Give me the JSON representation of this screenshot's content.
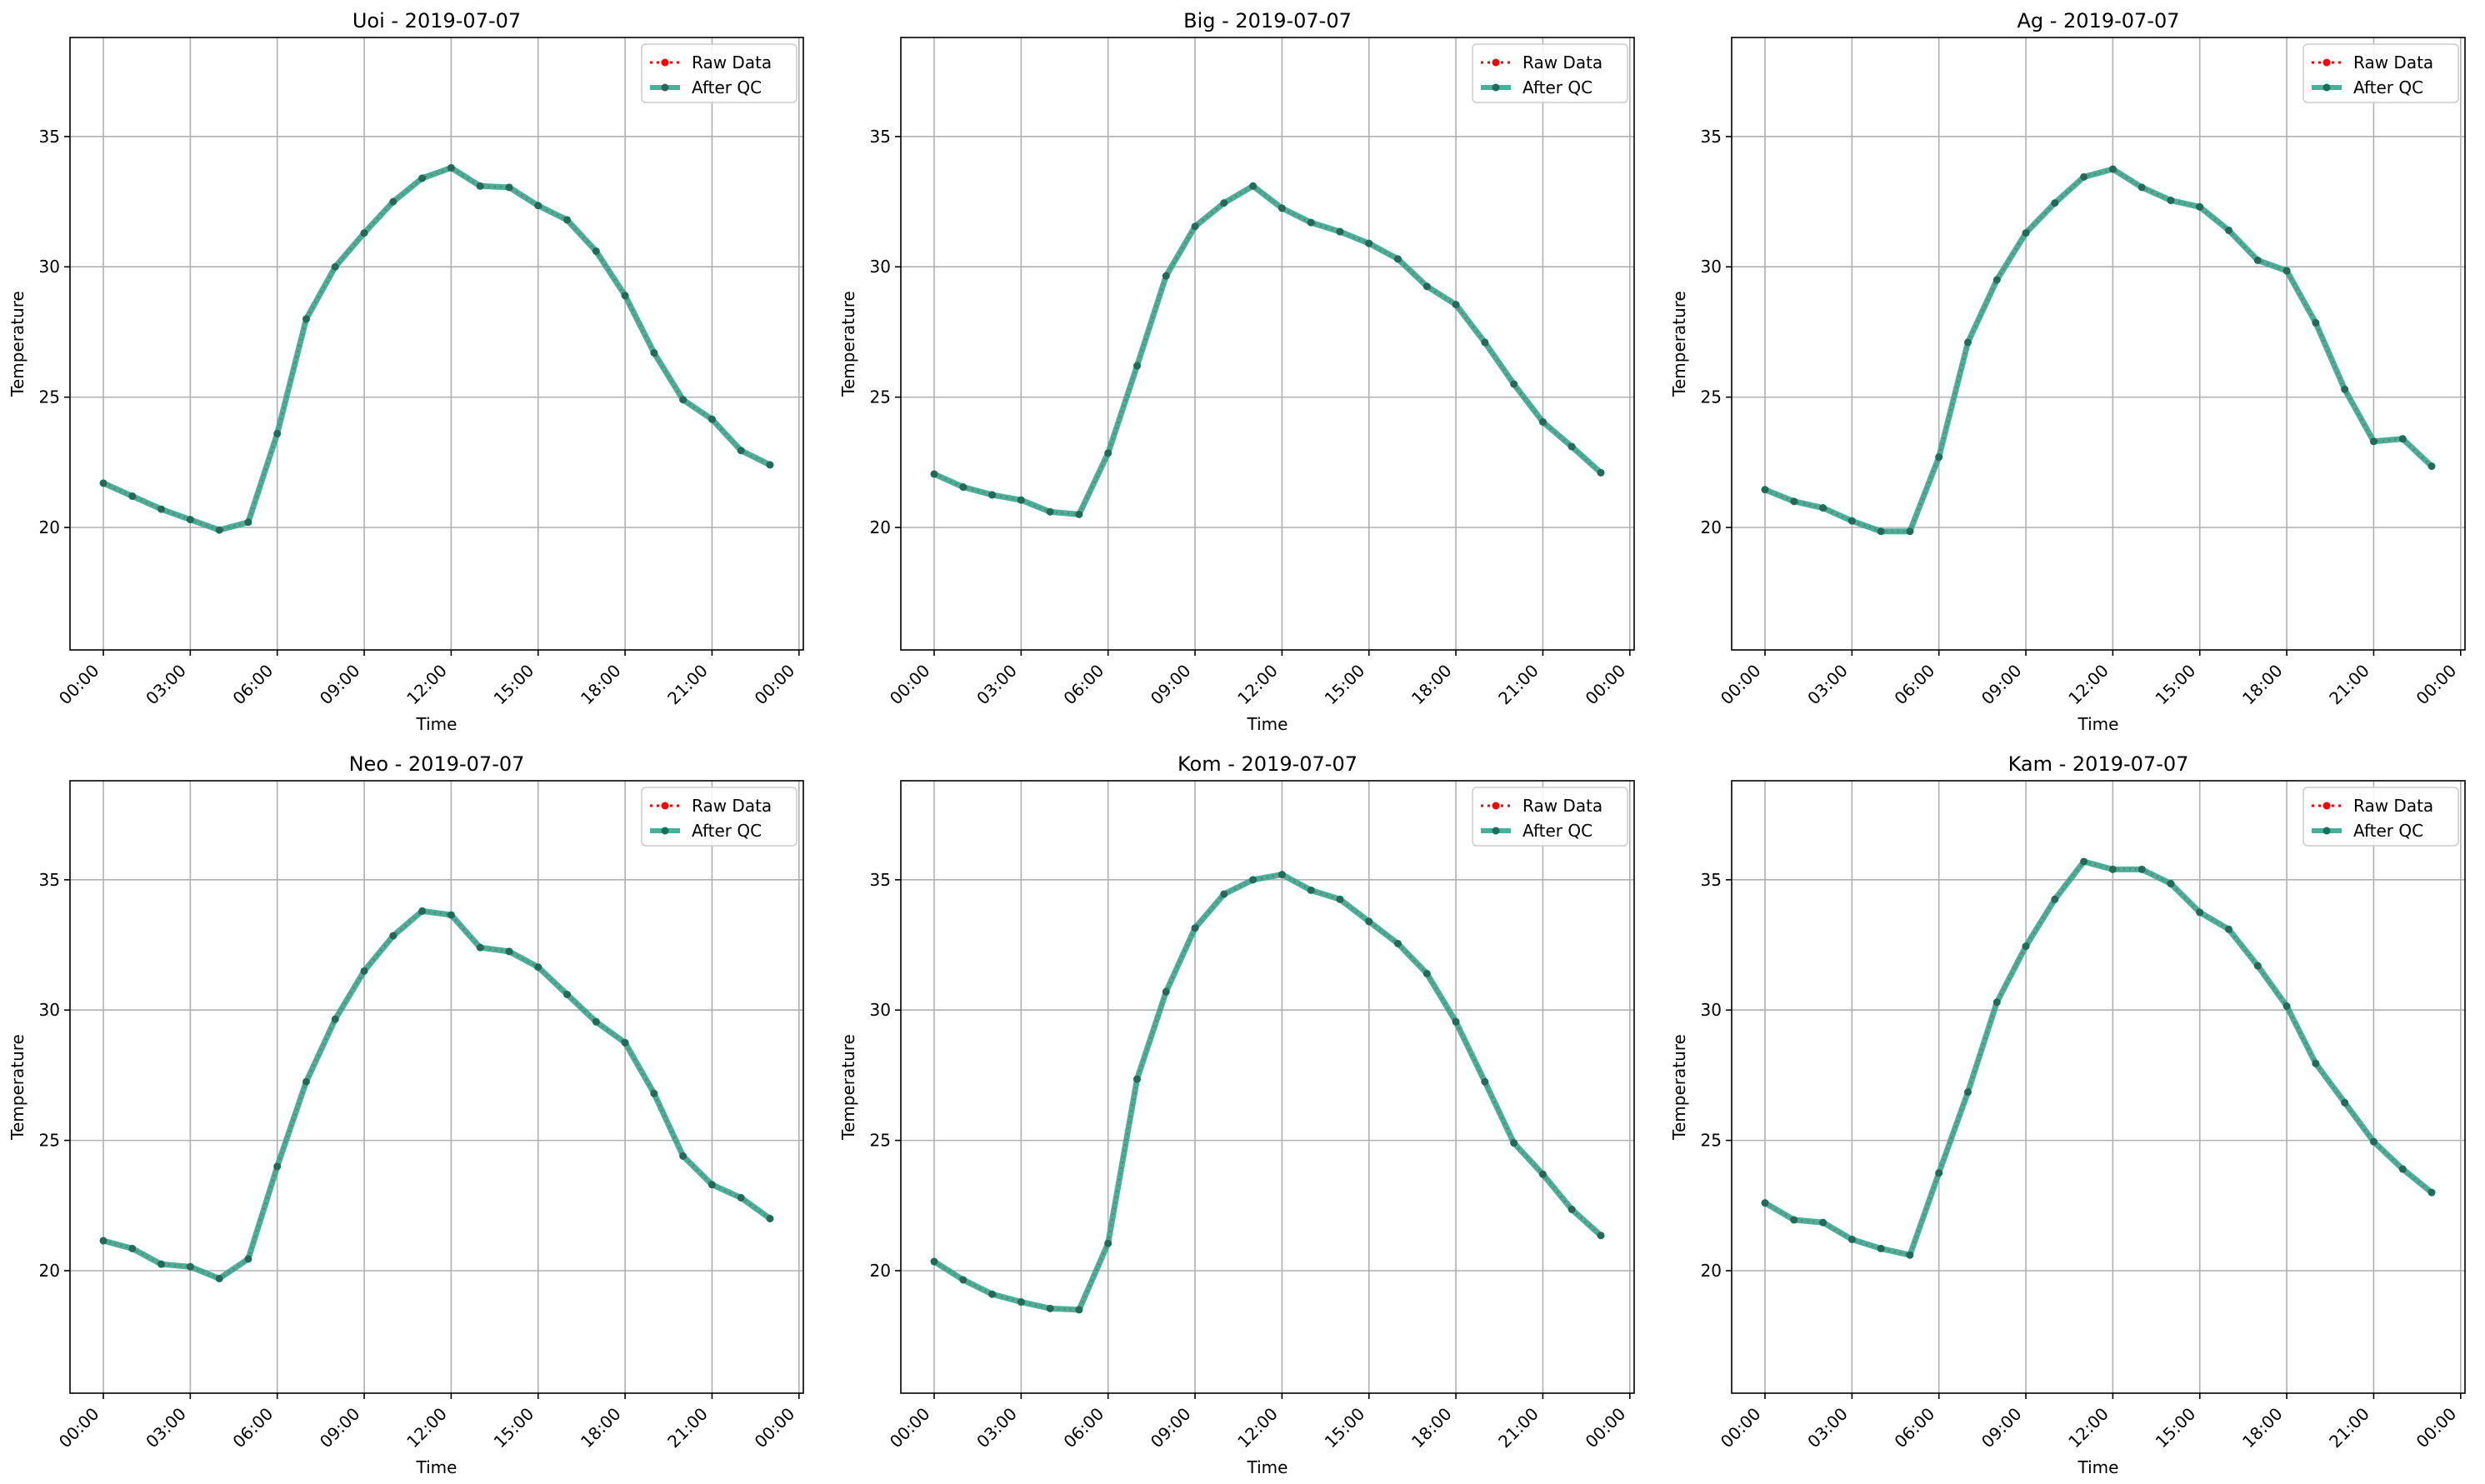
{
  "legend": {
    "raw_label": "Raw Data",
    "qc_label": "After QC",
    "placement": "upper right"
  },
  "colors": {
    "raw": "#ff0000",
    "qc": "#2ca58d",
    "qc_marker": "#1a6e5c",
    "grid": "#b0b0b0",
    "axes": "#000000"
  },
  "chart_data": [
    {
      "type": "line",
      "title": "Uoi - 2019-07-07",
      "xlabel": "Time",
      "ylabel": "Temperature",
      "xlim": [
        -1.15,
        24.15
      ],
      "ylim": [
        15.3,
        38.8
      ],
      "grid": true,
      "legend": "top-right",
      "xticks": [
        "00:00",
        "03:00",
        "06:00",
        "09:00",
        "12:00",
        "15:00",
        "18:00",
        "21:00",
        "00:00"
      ],
      "yticks": [
        20,
        25,
        30,
        35
      ],
      "x": [
        0,
        1,
        2,
        3,
        4,
        5,
        6,
        7,
        8,
        9,
        10,
        11,
        12,
        13,
        14,
        15,
        16,
        17,
        18,
        19,
        20,
        21,
        22,
        23
      ],
      "series": [
        {
          "name": "Raw Data",
          "values": [
            21.7,
            21.2,
            20.7,
            20.3,
            19.9,
            20.2,
            23.6,
            28.0,
            30.0,
            31.3,
            32.5,
            33.4,
            33.8,
            33.1,
            33.05,
            32.35,
            31.8,
            30.6,
            28.9,
            26.7,
            24.9,
            24.15,
            22.95,
            22.4
          ]
        },
        {
          "name": "After QC",
          "values": [
            21.7,
            21.2,
            20.7,
            20.3,
            19.9,
            20.2,
            23.6,
            28.0,
            30.0,
            31.3,
            32.5,
            33.4,
            33.8,
            33.1,
            33.05,
            32.35,
            31.8,
            30.6,
            28.9,
            26.7,
            24.9,
            24.15,
            22.95,
            22.4
          ]
        }
      ]
    },
    {
      "type": "line",
      "title": "Big - 2019-07-07",
      "xlabel": "Time",
      "ylabel": "Temperature",
      "xlim": [
        -1.15,
        24.15
      ],
      "ylim": [
        15.3,
        38.8
      ],
      "grid": true,
      "legend": "top-right",
      "xticks": [
        "00:00",
        "03:00",
        "06:00",
        "09:00",
        "12:00",
        "15:00",
        "18:00",
        "21:00",
        "00:00"
      ],
      "yticks": [
        20,
        25,
        30,
        35
      ],
      "x": [
        0,
        1,
        2,
        3,
        4,
        5,
        6,
        7,
        8,
        9,
        10,
        11,
        12,
        13,
        14,
        15,
        16,
        17,
        18,
        19,
        20,
        21,
        22,
        23
      ],
      "series": [
        {
          "name": "Raw Data",
          "values": [
            22.05,
            21.55,
            21.25,
            21.05,
            20.6,
            20.5,
            22.85,
            26.2,
            29.65,
            31.55,
            32.45,
            33.1,
            32.25,
            31.7,
            31.35,
            30.9,
            30.3,
            29.25,
            28.55,
            27.1,
            25.5,
            24.05,
            23.1,
            22.1
          ]
        },
        {
          "name": "After QC",
          "values": [
            22.05,
            21.55,
            21.25,
            21.05,
            20.6,
            20.5,
            22.85,
            26.2,
            29.65,
            31.55,
            32.45,
            33.1,
            32.25,
            31.7,
            31.35,
            30.9,
            30.3,
            29.25,
            28.55,
            27.1,
            25.5,
            24.05,
            23.1,
            22.1
          ]
        }
      ]
    },
    {
      "type": "line",
      "title": "Ag - 2019-07-07",
      "xlabel": "Time",
      "ylabel": "Temperature",
      "xlim": [
        -1.15,
        24.15
      ],
      "ylim": [
        15.3,
        38.8
      ],
      "grid": true,
      "legend": "top-right",
      "xticks": [
        "00:00",
        "03:00",
        "06:00",
        "09:00",
        "12:00",
        "15:00",
        "18:00",
        "21:00",
        "00:00"
      ],
      "yticks": [
        20,
        25,
        30,
        35
      ],
      "x": [
        0,
        1,
        2,
        3,
        4,
        5,
        6,
        7,
        8,
        9,
        10,
        11,
        12,
        13,
        14,
        15,
        16,
        17,
        18,
        19,
        20,
        21,
        22,
        23
      ],
      "series": [
        {
          "name": "Raw Data",
          "values": [
            21.45,
            21.0,
            20.75,
            20.25,
            19.85,
            19.85,
            22.7,
            27.1,
            29.5,
            31.3,
            32.45,
            33.45,
            33.75,
            33.05,
            32.55,
            32.3,
            31.4,
            30.25,
            29.85,
            27.85,
            25.3,
            23.3,
            23.4,
            22.35
          ]
        },
        {
          "name": "After QC",
          "values": [
            21.45,
            21.0,
            20.75,
            20.25,
            19.85,
            19.85,
            22.7,
            27.1,
            29.5,
            31.3,
            32.45,
            33.45,
            33.75,
            33.05,
            32.55,
            32.3,
            31.4,
            30.25,
            29.85,
            27.85,
            25.3,
            23.3,
            23.4,
            22.35
          ]
        }
      ]
    },
    {
      "type": "line",
      "title": "Neo - 2019-07-07",
      "xlabel": "Time",
      "ylabel": "Temperature",
      "xlim": [
        -1.15,
        24.15
      ],
      "ylim": [
        15.3,
        38.8
      ],
      "grid": true,
      "legend": "top-right",
      "xticks": [
        "00:00",
        "03:00",
        "06:00",
        "09:00",
        "12:00",
        "15:00",
        "18:00",
        "21:00",
        "00:00"
      ],
      "yticks": [
        20,
        25,
        30,
        35
      ],
      "x": [
        0,
        1,
        2,
        3,
        4,
        5,
        6,
        7,
        8,
        9,
        10,
        11,
        12,
        13,
        14,
        15,
        16,
        17,
        18,
        19,
        20,
        21,
        22,
        23
      ],
      "series": [
        {
          "name": "Raw Data",
          "values": [
            21.15,
            20.85,
            20.25,
            20.15,
            19.7,
            20.45,
            24.0,
            27.25,
            29.65,
            31.5,
            32.85,
            33.8,
            33.65,
            32.4,
            32.25,
            31.65,
            30.6,
            29.55,
            28.75,
            26.8,
            24.4,
            23.3,
            22.8,
            22.0
          ]
        },
        {
          "name": "After QC",
          "values": [
            21.15,
            20.85,
            20.25,
            20.15,
            19.7,
            20.45,
            24.0,
            27.25,
            29.65,
            31.5,
            32.85,
            33.8,
            33.65,
            32.4,
            32.25,
            31.65,
            30.6,
            29.55,
            28.75,
            26.8,
            24.4,
            23.3,
            22.8,
            22.0
          ]
        }
      ]
    },
    {
      "type": "line",
      "title": "Kom - 2019-07-07",
      "xlabel": "Time",
      "ylabel": "Temperature",
      "xlim": [
        -1.15,
        24.15
      ],
      "ylim": [
        15.3,
        38.8
      ],
      "grid": true,
      "legend": "top-right",
      "xticks": [
        "00:00",
        "03:00",
        "06:00",
        "09:00",
        "12:00",
        "15:00",
        "18:00",
        "21:00",
        "00:00"
      ],
      "yticks": [
        20,
        25,
        30,
        35
      ],
      "x": [
        0,
        1,
        2,
        3,
        4,
        5,
        6,
        7,
        8,
        9,
        10,
        11,
        12,
        13,
        14,
        15,
        16,
        17,
        18,
        19,
        20,
        21,
        22,
        23
      ],
      "series": [
        {
          "name": "Raw Data",
          "values": [
            20.35,
            19.65,
            19.1,
            18.8,
            18.55,
            18.5,
            21.05,
            27.35,
            30.7,
            33.15,
            34.45,
            35.0,
            35.2,
            34.6,
            34.25,
            33.4,
            32.55,
            31.4,
            29.55,
            27.25,
            24.9,
            23.7,
            22.35,
            21.35
          ]
        },
        {
          "name": "After QC",
          "values": [
            20.35,
            19.65,
            19.1,
            18.8,
            18.55,
            18.5,
            21.05,
            27.35,
            30.7,
            33.15,
            34.45,
            35.0,
            35.2,
            34.6,
            34.25,
            33.4,
            32.55,
            31.4,
            29.55,
            27.25,
            24.9,
            23.7,
            22.35,
            21.35
          ]
        }
      ]
    },
    {
      "type": "line",
      "title": "Kam - 2019-07-07",
      "xlabel": "Time",
      "ylabel": "Temperature",
      "xlim": [
        -1.15,
        24.15
      ],
      "ylim": [
        15.3,
        38.8
      ],
      "grid": true,
      "legend": "top-right",
      "xticks": [
        "00:00",
        "03:00",
        "06:00",
        "09:00",
        "12:00",
        "15:00",
        "18:00",
        "21:00",
        "00:00"
      ],
      "yticks": [
        20,
        25,
        30,
        35
      ],
      "x": [
        0,
        1,
        2,
        3,
        4,
        5,
        6,
        7,
        8,
        9,
        10,
        11,
        12,
        13,
        14,
        15,
        16,
        17,
        18,
        19,
        20,
        21,
        22,
        23
      ],
      "series": [
        {
          "name": "Raw Data",
          "values": [
            22.6,
            21.95,
            21.85,
            21.2,
            20.85,
            20.6,
            23.75,
            26.85,
            30.3,
            32.45,
            34.25,
            35.7,
            35.4,
            35.4,
            34.85,
            33.75,
            33.1,
            31.7,
            30.15,
            27.95,
            26.45,
            24.95,
            23.9,
            23.0
          ]
        },
        {
          "name": "After QC",
          "values": [
            22.6,
            21.95,
            21.85,
            21.2,
            20.85,
            20.6,
            23.75,
            26.85,
            30.3,
            32.45,
            34.25,
            35.7,
            35.4,
            35.4,
            34.85,
            33.75,
            33.1,
            31.7,
            30.15,
            27.95,
            26.45,
            24.95,
            23.9,
            23.0
          ]
        }
      ]
    }
  ]
}
